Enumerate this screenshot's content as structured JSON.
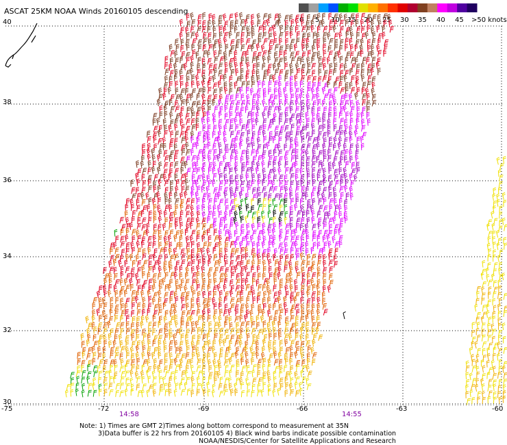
{
  "title": "ASCAT 25KM NOAA Winds 20160105 descending",
  "legend": {
    "labels": [
      "0",
      "5",
      "10",
      "15",
      "20",
      "25",
      "30",
      "35",
      "40",
      "45",
      ">50 knots"
    ],
    "colors": [
      "#505050",
      "#a0a0a0",
      "#00a0ff",
      "#0050ff",
      "#00b000",
      "#00e000",
      "#e0e000",
      "#ffb000",
      "#ff7000",
      "#ff3000",
      "#e00000",
      "#b00030",
      "#804020",
      "#c08060",
      "#ff00ff",
      "#c000e0",
      "#5000a0",
      "#200060"
    ]
  },
  "lat_labels": [
    "40",
    "38",
    "36",
    "34",
    "32",
    "30"
  ],
  "lon_labels": [
    "-75",
    "-72",
    "-69",
    "-66",
    "-63",
    "-60"
  ],
  "time_labels": [
    "14:58",
    "14:55"
  ],
  "notes": [
    "Note: 1) Times are GMT 2)Times along bottom correspond to measurement at 35N",
    "3)Data buffer is 22 hrs from 20160105 4) Black wind barbs indicate possible contamination",
    "NOAA/NESDIS/Center for Satellite Applications and Research"
  ],
  "colors": {
    "grid": "#000000",
    "c10": "#00a000",
    "c20": "#f0e000",
    "c25": "#f0b000",
    "c30": "#e06000",
    "c35": "#e00020",
    "c40": "#7a3a20",
    "c45": "#e000ff",
    "c50": "#a000c0",
    "contam": "#000000"
  }
}
